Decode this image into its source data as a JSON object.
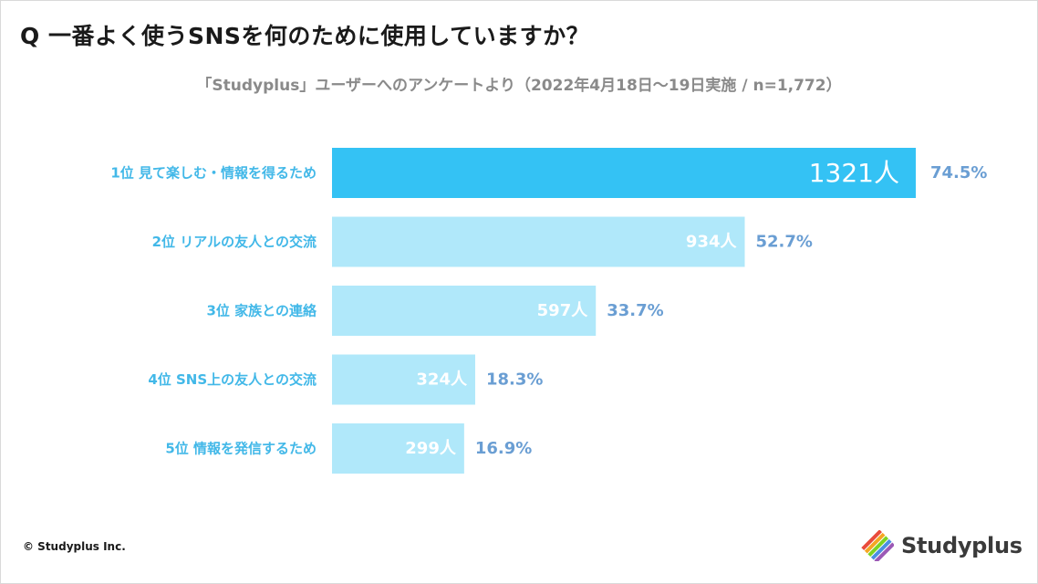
{
  "header": {
    "question": "Q 一番よく使うSNSを何のために使用していますか？",
    "subtitle": "「Studyplus」ユーザーへのアンケートより（2022年4月18日〜19日実施 / n=1,772）"
  },
  "chart_data": {
    "type": "bar",
    "orientation": "horizontal",
    "categories": [
      "1位 見て楽しむ・情報を得るため",
      "2位 リアルの友人との交流",
      "3位 家族との連絡",
      "4位 SNS上の友人との交流",
      "5位 情報を発信するため"
    ],
    "values": [
      1321,
      934,
      597,
      324,
      299
    ],
    "value_labels": [
      "1321人",
      "934人",
      "597人",
      "324人",
      "299人"
    ],
    "percent_labels": [
      "74.5%",
      "52.7%",
      "33.7%",
      "18.3%",
      "16.9%"
    ],
    "highlight_index": 0,
    "colors": {
      "highlight": "#34c2f4",
      "bar": "#b0e8fa",
      "category": "#42b8e8",
      "percent": "#6a9ed3"
    },
    "xlim": [
      0,
      1321
    ],
    "grid": false,
    "legend": "none"
  },
  "footer": {
    "copyright": "© Studyplus Inc.",
    "logo_text": "Studyplus",
    "logo_icon": "pencil-stripes-icon"
  }
}
